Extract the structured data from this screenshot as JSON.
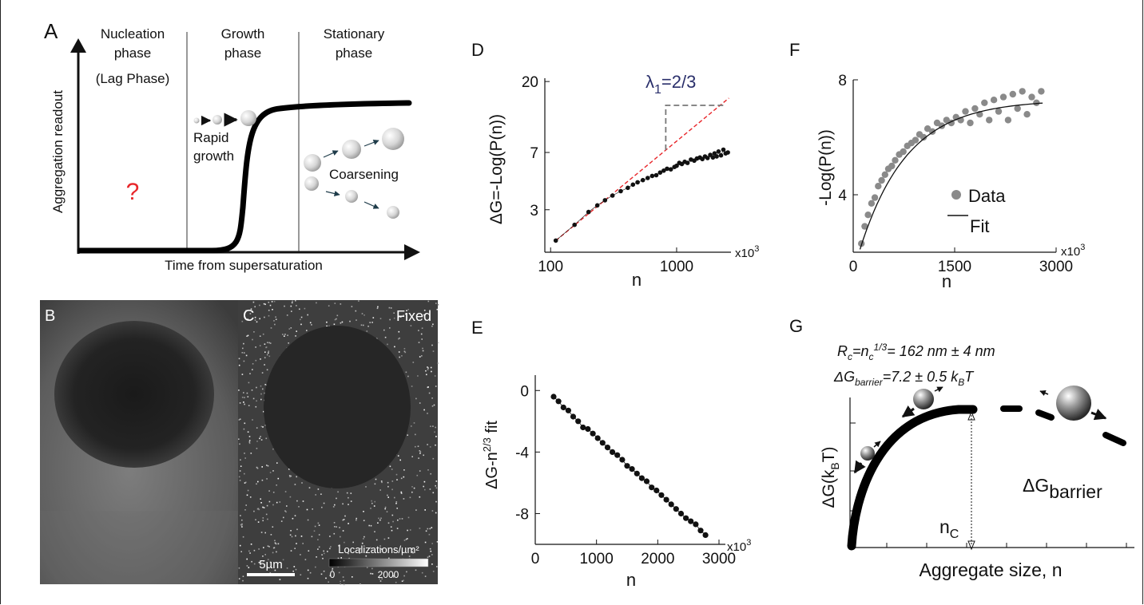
{
  "panelA": {
    "letter": "A",
    "phase1_l1": "Nucleation",
    "phase1_l2": "phase",
    "phase1_l3": "(Lag Phase)",
    "phase2_l1": "Growth",
    "phase2_l2": "phase",
    "phase3_l1": "Stationary",
    "phase3_l2": "phase",
    "question": "?",
    "rapid_l1": "Rapid",
    "rapid_l2": "growth",
    "coarsening": "Coarsening",
    "ylabel": "Aggregation readout",
    "xlabel": "Time from supersaturation",
    "question_color": "#e8262a"
  },
  "panelB": {
    "letter": "B"
  },
  "panelC": {
    "letter": "C",
    "tag": "Fixed",
    "scalebar": "5µm",
    "colorbar_title": "Localizations/µm²",
    "colorbar_min": "0",
    "colorbar_max": "2000"
  },
  "panelD": {
    "letter": "D",
    "ylabel": "ΔG=-Log(P(n))",
    "xlabel": "n",
    "xmult": "x10",
    "xmult_exp": "3",
    "yticks": [
      "20",
      "7",
      "3"
    ],
    "xticks": [
      "100",
      "1000"
    ],
    "slope_label": "λ",
    "slope_sub": "1",
    "slope_value": "=2/3",
    "fit_color": "#e8262a",
    "label_color": "#2a2f6b"
  },
  "panelE": {
    "letter": "E",
    "ylabel": "ΔG-n",
    "ylabel_sup": "2/3",
    "ylabel_tail": " fit",
    "xlabel": "n",
    "xmult": "x10",
    "xmult_exp": "3",
    "yticks": [
      "0",
      "-4",
      "-8"
    ],
    "xticks": [
      "0",
      "1000",
      "2000",
      "3000"
    ]
  },
  "panelF": {
    "letter": "F",
    "ylabel": "-Log(P(n))",
    "xlabel": "n",
    "xmult": "x10",
    "xmult_exp": "3",
    "yticks": [
      "8",
      "4"
    ],
    "xticks": [
      "0",
      "1500",
      "3000"
    ],
    "legend_data": "Data",
    "legend_fit": "Fit",
    "data_color": "#8a8a8a"
  },
  "panelG": {
    "letter": "G",
    "eq1": "Rc=nc",
    "eq1_a": "R",
    "eq1_b": "c",
    "eq1_c": "=n",
    "eq1_d": "c",
    "eq1_e": "1/3",
    "eq1_f": "= 162 nm ± 4 nm",
    "eq2_a": "ΔG",
    "eq2_b": "barrier",
    "eq2_c": "=7.2 ± 0.5 k",
    "eq2_d": "B",
    "eq2_e": "T",
    "ylabel_a": "ΔG(k",
    "ylabel_b": "B",
    "ylabel_c": "T)",
    "xlabel": "Aggregate size, n",
    "barrier_a": "ΔG",
    "barrier_b": "barrier",
    "nc_a": "n",
    "nc_b": "C"
  },
  "chart_data": [
    {
      "panel": "D",
      "type": "scatter",
      "x_scale": "log",
      "y_scale": "log",
      "xlabel": "n",
      "ylabel": "ΔG=-Log(P(n))",
      "x_unit_multiplier": 1000,
      "xlim": [
        90,
        2700
      ],
      "ylim": [
        1.6,
        21
      ],
      "x": [
        110,
        155,
        200,
        235,
        270,
        310,
        360,
        410,
        450,
        490,
        540,
        590,
        640,
        690,
        740,
        790,
        840,
        900,
        960,
        1000,
        1050,
        1100,
        1160,
        1220,
        1300,
        1380,
        1450,
        1530,
        1600,
        1680,
        1760,
        1850,
        1940,
        2000,
        2080,
        2150,
        2250,
        2350,
        2450,
        2550
      ],
      "y": [
        1.9,
        2.4,
        2.9,
        3.2,
        3.45,
        3.7,
        3.95,
        4.15,
        4.35,
        4.5,
        4.65,
        4.8,
        4.95,
        5.0,
        5.2,
        5.35,
        5.5,
        5.45,
        5.65,
        5.75,
        6.0,
        5.9,
        6.1,
        6.0,
        6.3,
        6.2,
        6.4,
        6.5,
        6.35,
        6.6,
        6.45,
        6.75,
        6.5,
        6.9,
        6.6,
        7.1,
        6.7,
        7.3,
        6.9,
        7.0
      ],
      "fit": {
        "slope": 0.6667,
        "label": "λ1=2/3",
        "x_range": [
          110,
          2600
        ]
      }
    },
    {
      "panel": "E",
      "type": "line",
      "xlabel": "n",
      "ylabel": "ΔG-n^2/3 fit",
      "x_unit_multiplier": 1000,
      "xlim": [
        0,
        3000
      ],
      "ylim": [
        -10,
        1
      ],
      "x": [
        300,
        380,
        460,
        540,
        620,
        700,
        780,
        860,
        940,
        1020,
        1100,
        1180,
        1260,
        1340,
        1420,
        1500,
        1580,
        1660,
        1740,
        1820,
        1900,
        1980,
        2060,
        2140,
        2220,
        2300,
        2380,
        2460,
        2540,
        2620,
        2700,
        2780
      ],
      "y": [
        -0.4,
        -0.7,
        -1.1,
        -1.3,
        -1.7,
        -2.0,
        -2.4,
        -2.5,
        -2.8,
        -3.1,
        -3.4,
        -3.7,
        -4.0,
        -4.2,
        -4.5,
        -4.9,
        -5.1,
        -5.4,
        -5.7,
        -5.9,
        -6.3,
        -6.5,
        -6.8,
        -7.1,
        -7.4,
        -7.7,
        -8.0,
        -8.3,
        -8.5,
        -8.7,
        -9.1,
        -9.4
      ]
    },
    {
      "panel": "F",
      "type": "scatter",
      "xlabel": "n",
      "ylabel": "-Log(P(n))",
      "x_unit_multiplier": 1000,
      "xlim": [
        0,
        3000
      ],
      "ylim": [
        2.0,
        8.0
      ],
      "x": [
        120,
        170,
        220,
        270,
        320,
        370,
        420,
        470,
        520,
        570,
        620,
        680,
        740,
        800,
        860,
        920,
        980,
        1040,
        1100,
        1170,
        1240,
        1310,
        1380,
        1450,
        1520,
        1590,
        1660,
        1730,
        1800,
        1870,
        1940,
        2010,
        2080,
        2150,
        2220,
        2290,
        2360,
        2430,
        2500,
        2570,
        2640,
        2710,
        2780
      ],
      "y": [
        2.3,
        2.9,
        3.3,
        3.7,
        3.9,
        4.3,
        4.5,
        4.7,
        4.9,
        5.0,
        5.2,
        5.4,
        5.5,
        5.7,
        5.8,
        5.9,
        6.1,
        6.0,
        6.3,
        6.2,
        6.5,
        6.4,
        6.6,
        6.5,
        6.7,
        6.6,
        6.9,
        6.5,
        7.0,
        6.8,
        7.2,
        6.6,
        7.3,
        6.9,
        7.4,
        6.6,
        7.5,
        7.0,
        7.6,
        6.8,
        7.4,
        7.2,
        7.6
      ],
      "series": [
        {
          "name": "Data"
        },
        {
          "name": "Fit"
        }
      ]
    }
  ]
}
